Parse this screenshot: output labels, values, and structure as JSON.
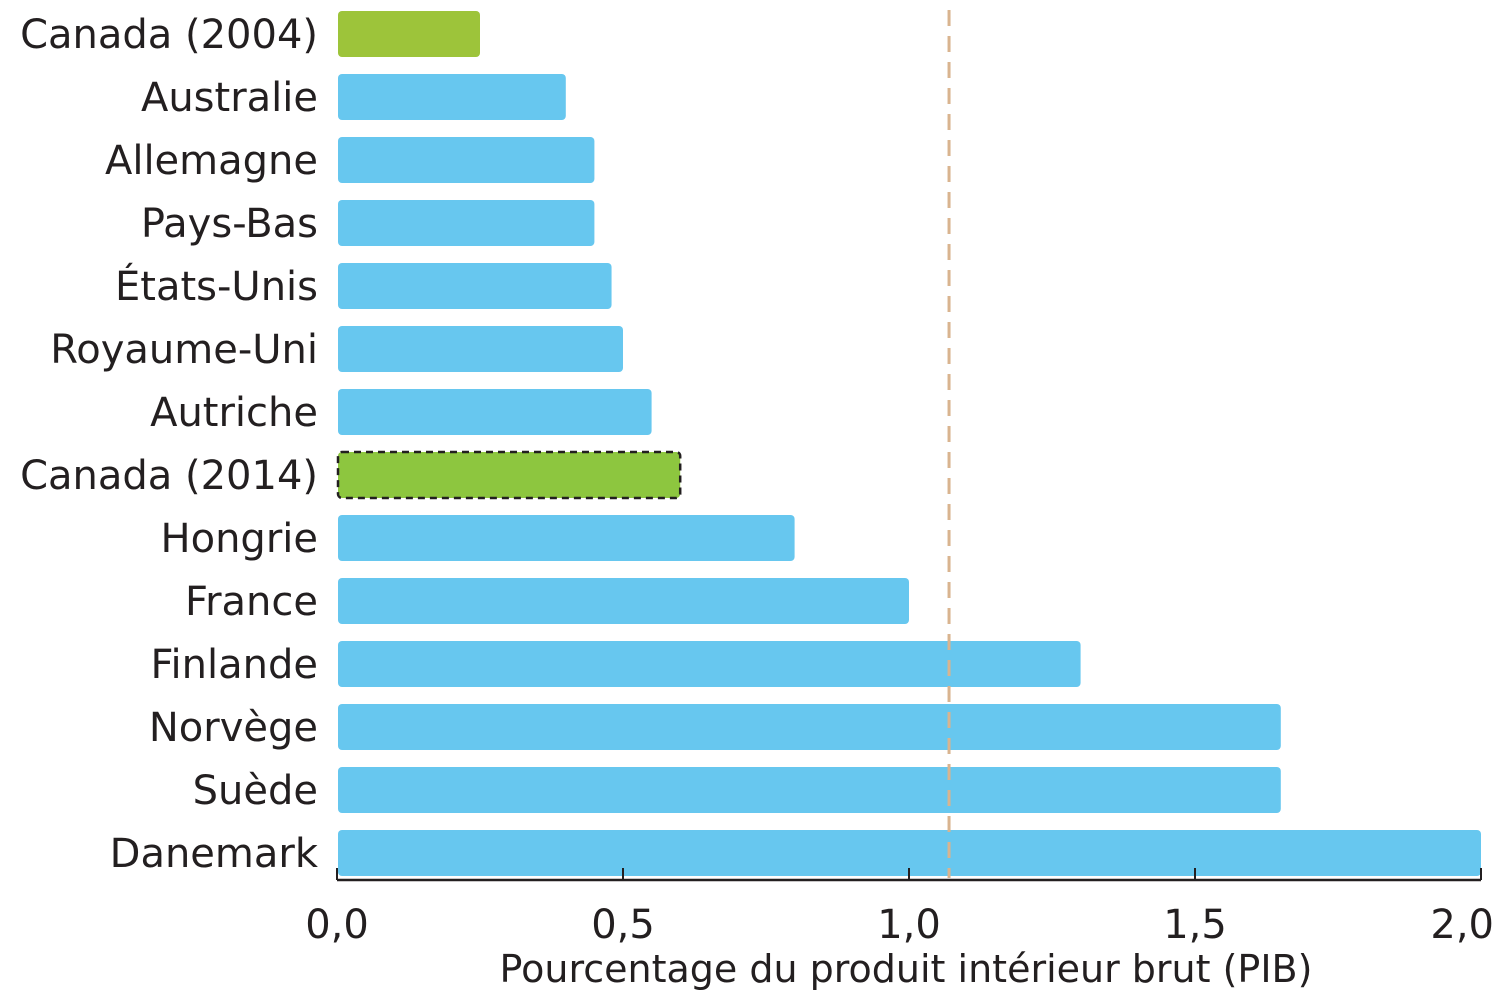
{
  "chart_data": {
    "type": "bar",
    "orientation": "horizontal",
    "title": "",
    "xlabel": "Pourcentage du produit intérieur brut (PIB)",
    "ylabel": "",
    "xlim": [
      0,
      2.0
    ],
    "xticks": [
      "0,0",
      "0,5",
      "1,0",
      "1,5",
      "2,0"
    ],
    "xtick_values": [
      0,
      0.5,
      1.0,
      1.5,
      2.0
    ],
    "grid": false,
    "legend": "none",
    "categories": [
      "Canada (2004)",
      "Australie",
      "Allemagne",
      "Pays-Bas",
      "États-Unis",
      "Royaume-Uni",
      "Autriche",
      "Canada (2014)",
      "Hongrie",
      "France",
      "Finlande",
      "Norvège",
      "Suède",
      "Danemark"
    ],
    "values": [
      0.25,
      0.4,
      0.45,
      0.45,
      0.48,
      0.5,
      0.55,
      0.6,
      0.8,
      1.0,
      1.3,
      1.65,
      1.65,
      2.0
    ],
    "highlight": [
      "Canada (2004)",
      "Canada (2014)"
    ],
    "dashed_outline": [
      "Canada (2014)"
    ],
    "reference_line": {
      "value": 1.07,
      "style": "dashed",
      "color": "#d9b48f"
    },
    "colors": {
      "default": "#67c7ef",
      "highlight": "#9dc43a",
      "highlight_2014": "#8dc63f",
      "axis": "#231f20",
      "text": "#231f20"
    }
  }
}
